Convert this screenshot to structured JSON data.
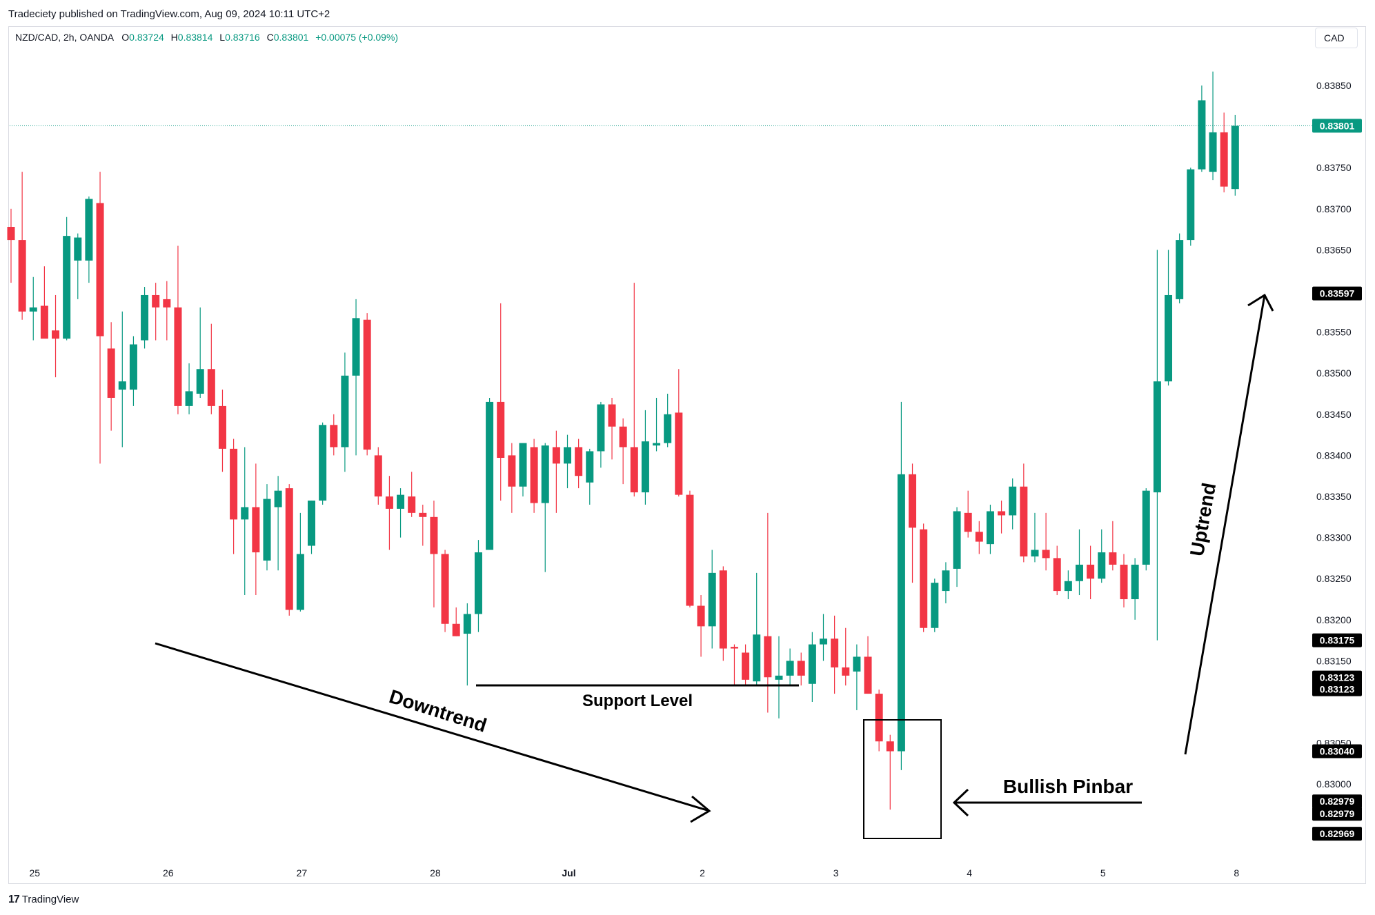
{
  "header": {
    "published": "Tradeciety published on TradingView.com, Aug 09, 2024 10:11 UTC+2",
    "symbol": "NZD/CAD, 2h, OANDA",
    "o_label": "O",
    "o_value": "0.83724",
    "h_label": "H",
    "h_value": "0.83814",
    "l_label": "L",
    "l_value": "0.83716",
    "c_label": "C",
    "c_value": "0.83801",
    "change": "+0.00075 (+0.09%)",
    "currency": "CAD"
  },
  "footer": {
    "brand": "TradingView",
    "brand_mark": "17"
  },
  "colors": {
    "up": "#089981",
    "down": "#f23645",
    "text": "#131722",
    "grid": "#d9dbe2"
  },
  "chart_data": {
    "type": "candlestick",
    "symbol": "NZD/CAD",
    "timeframe": "2h",
    "ylim": [
      0.829,
      0.8392
    ],
    "x_ticks": [
      {
        "label": "25",
        "index": 2
      },
      {
        "label": "26",
        "index": 14
      },
      {
        "label": "27",
        "index": 26
      },
      {
        "label": "28",
        "index": 38
      },
      {
        "label": "Jul",
        "index": 50
      },
      {
        "label": "2",
        "index": 62
      },
      {
        "label": "3",
        "index": 74
      },
      {
        "label": "4",
        "index": 86
      },
      {
        "label": "5",
        "index": 98
      },
      {
        "label": "8",
        "index": 110
      }
    ],
    "y_ticks": [
      "0.83850",
      "0.83750",
      "0.83700",
      "0.83650",
      "0.83550",
      "0.83500",
      "0.83450",
      "0.83400",
      "0.83350",
      "0.83300",
      "0.83250",
      "0.83200",
      "0.83150",
      "0.83050",
      "0.83000"
    ],
    "price_labels": [
      {
        "value": 0.83801,
        "text": "0.83801",
        "style": "last"
      },
      {
        "value": 0.83597,
        "text": "0.83597",
        "style": "marker"
      },
      {
        "value": 0.83175,
        "text": "0.83175",
        "style": "marker"
      },
      {
        "value": 0.83123,
        "text": "0.83123",
        "style": "marker",
        "offset": -8
      },
      {
        "value": 0.83123,
        "text": "0.83123",
        "style": "marker",
        "offset": 9
      },
      {
        "value": 0.8304,
        "text": "0.83040",
        "style": "marker"
      },
      {
        "value": 0.82979,
        "text": "0.82979",
        "style": "marker"
      },
      {
        "value": 0.82979,
        "text": "0.82979",
        "style": "marker",
        "offset": 18
      },
      {
        "value": 0.82969,
        "text": "0.82969",
        "style": "marker",
        "offset": 35
      }
    ],
    "last_price": 0.83801,
    "candles": [
      {
        "o": 0.83678,
        "h": 0.837,
        "l": 0.8361,
        "c": 0.83662
      },
      {
        "o": 0.83662,
        "h": 0.83745,
        "l": 0.83565,
        "c": 0.83575
      },
      {
        "o": 0.83575,
        "h": 0.83617,
        "l": 0.8354,
        "c": 0.8358
      },
      {
        "o": 0.83582,
        "h": 0.8363,
        "l": 0.83545,
        "c": 0.83542
      },
      {
        "o": 0.83552,
        "h": 0.83595,
        "l": 0.83495,
        "c": 0.83542
      },
      {
        "o": 0.83542,
        "h": 0.8369,
        "l": 0.8354,
        "c": 0.83667
      },
      {
        "o": 0.83637,
        "h": 0.8367,
        "l": 0.8359,
        "c": 0.83665
      },
      {
        "o": 0.83637,
        "h": 0.83715,
        "l": 0.8361,
        "c": 0.83712
      },
      {
        "o": 0.83707,
        "h": 0.83745,
        "l": 0.8339,
        "c": 0.83545
      },
      {
        "o": 0.8353,
        "h": 0.83562,
        "l": 0.8343,
        "c": 0.8347
      },
      {
        "o": 0.8348,
        "h": 0.83575,
        "l": 0.8341,
        "c": 0.8349
      },
      {
        "o": 0.8348,
        "h": 0.83545,
        "l": 0.8346,
        "c": 0.83535
      },
      {
        "o": 0.8354,
        "h": 0.83605,
        "l": 0.8353,
        "c": 0.83595
      },
      {
        "o": 0.83595,
        "h": 0.8361,
        "l": 0.8354,
        "c": 0.8358
      },
      {
        "o": 0.8359,
        "h": 0.83612,
        "l": 0.8354,
        "c": 0.8358
      },
      {
        "o": 0.8358,
        "h": 0.83655,
        "l": 0.8345,
        "c": 0.8346
      },
      {
        "o": 0.8346,
        "h": 0.83512,
        "l": 0.8345,
        "c": 0.83478
      },
      {
        "o": 0.83475,
        "h": 0.8358,
        "l": 0.8347,
        "c": 0.83505
      },
      {
        "o": 0.83505,
        "h": 0.8356,
        "l": 0.8345,
        "c": 0.8346
      },
      {
        "o": 0.8346,
        "h": 0.8348,
        "l": 0.8338,
        "c": 0.83408
      },
      {
        "o": 0.83408,
        "h": 0.8342,
        "l": 0.8328,
        "c": 0.83322
      },
      {
        "o": 0.83322,
        "h": 0.8341,
        "l": 0.8323,
        "c": 0.83337
      },
      {
        "o": 0.83337,
        "h": 0.8339,
        "l": 0.8323,
        "c": 0.83282
      },
      {
        "o": 0.83272,
        "h": 0.83365,
        "l": 0.8326,
        "c": 0.83347
      },
      {
        "o": 0.83337,
        "h": 0.83375,
        "l": 0.8326,
        "c": 0.83357
      },
      {
        "o": 0.8336,
        "h": 0.83365,
        "l": 0.83205,
        "c": 0.83212
      },
      {
        "o": 0.83212,
        "h": 0.8333,
        "l": 0.8321,
        "c": 0.8328
      },
      {
        "o": 0.8329,
        "h": 0.83345,
        "l": 0.8328,
        "c": 0.83345
      },
      {
        "o": 0.83345,
        "h": 0.8344,
        "l": 0.8334,
        "c": 0.83437
      },
      {
        "o": 0.83437,
        "h": 0.8345,
        "l": 0.834,
        "c": 0.8341
      },
      {
        "o": 0.8341,
        "h": 0.83525,
        "l": 0.8338,
        "c": 0.83497
      },
      {
        "o": 0.83497,
        "h": 0.8359,
        "l": 0.834,
        "c": 0.83567
      },
      {
        "o": 0.83565,
        "h": 0.83573,
        "l": 0.834,
        "c": 0.83407
      },
      {
        "o": 0.834,
        "h": 0.8341,
        "l": 0.8334,
        "c": 0.8335
      },
      {
        "o": 0.8335,
        "h": 0.83375,
        "l": 0.83285,
        "c": 0.83335
      },
      {
        "o": 0.83335,
        "h": 0.8336,
        "l": 0.833,
        "c": 0.83352
      },
      {
        "o": 0.8335,
        "h": 0.8338,
        "l": 0.83325,
        "c": 0.8333
      },
      {
        "o": 0.8333,
        "h": 0.8334,
        "l": 0.8329,
        "c": 0.83325
      },
      {
        "o": 0.83325,
        "h": 0.83345,
        "l": 0.83215,
        "c": 0.8328
      },
      {
        "o": 0.8328,
        "h": 0.83285,
        "l": 0.83185,
        "c": 0.83195
      },
      {
        "o": 0.83195,
        "h": 0.83215,
        "l": 0.8318,
        "c": 0.8318
      },
      {
        "o": 0.83183,
        "h": 0.8322,
        "l": 0.8312,
        "c": 0.83207
      },
      {
        "o": 0.83207,
        "h": 0.83297,
        "l": 0.83185,
        "c": 0.83282
      },
      {
        "o": 0.83285,
        "h": 0.8347,
        "l": 0.83285,
        "c": 0.83465
      },
      {
        "o": 0.83465,
        "h": 0.83585,
        "l": 0.83345,
        "c": 0.83397
      },
      {
        "o": 0.834,
        "h": 0.83415,
        "l": 0.8333,
        "c": 0.83362
      },
      {
        "o": 0.83362,
        "h": 0.83415,
        "l": 0.8335,
        "c": 0.83415
      },
      {
        "o": 0.8341,
        "h": 0.8342,
        "l": 0.8333,
        "c": 0.83342
      },
      {
        "o": 0.83342,
        "h": 0.83415,
        "l": 0.83258,
        "c": 0.83412
      },
      {
        "o": 0.8341,
        "h": 0.8343,
        "l": 0.8333,
        "c": 0.8339
      },
      {
        "o": 0.8339,
        "h": 0.83425,
        "l": 0.8336,
        "c": 0.8341
      },
      {
        "o": 0.8341,
        "h": 0.8342,
        "l": 0.8336,
        "c": 0.83375
      },
      {
        "o": 0.83367,
        "h": 0.83408,
        "l": 0.8334,
        "c": 0.83405
      },
      {
        "o": 0.83405,
        "h": 0.83465,
        "l": 0.83385,
        "c": 0.83462
      },
      {
        "o": 0.83462,
        "h": 0.8347,
        "l": 0.83395,
        "c": 0.83435
      },
      {
        "o": 0.83435,
        "h": 0.83445,
        "l": 0.83365,
        "c": 0.8341
      },
      {
        "o": 0.8341,
        "h": 0.8361,
        "l": 0.8335,
        "c": 0.83355
      },
      {
        "o": 0.83355,
        "h": 0.83455,
        "l": 0.8334,
        "c": 0.83417
      },
      {
        "o": 0.83412,
        "h": 0.8347,
        "l": 0.83405,
        "c": 0.83415
      },
      {
        "o": 0.83415,
        "h": 0.83475,
        "l": 0.8341,
        "c": 0.8345
      },
      {
        "o": 0.83452,
        "h": 0.83505,
        "l": 0.8335,
        "c": 0.83352
      },
      {
        "o": 0.83352,
        "h": 0.83357,
        "l": 0.83215,
        "c": 0.83217
      },
      {
        "o": 0.83217,
        "h": 0.8323,
        "l": 0.83155,
        "c": 0.83192
      },
      {
        "o": 0.83192,
        "h": 0.83285,
        "l": 0.83165,
        "c": 0.83257
      },
      {
        "o": 0.8326,
        "h": 0.83265,
        "l": 0.8315,
        "c": 0.83165
      },
      {
        "o": 0.83167,
        "h": 0.8317,
        "l": 0.8312,
        "c": 0.83165
      },
      {
        "o": 0.8316,
        "h": 0.8317,
        "l": 0.8312,
        "c": 0.83127
      },
      {
        "o": 0.83125,
        "h": 0.83257,
        "l": 0.8312,
        "c": 0.83182
      },
      {
        "o": 0.8318,
        "h": 0.8333,
        "l": 0.83087,
        "c": 0.8313
      },
      {
        "o": 0.83127,
        "h": 0.8318,
        "l": 0.8308,
        "c": 0.83132
      },
      {
        "o": 0.83132,
        "h": 0.83165,
        "l": 0.8312,
        "c": 0.8315
      },
      {
        "o": 0.8315,
        "h": 0.8316,
        "l": 0.8312,
        "c": 0.83132
      },
      {
        "o": 0.83122,
        "h": 0.83185,
        "l": 0.831,
        "c": 0.8317
      },
      {
        "o": 0.8317,
        "h": 0.83207,
        "l": 0.8315,
        "c": 0.83177
      },
      {
        "o": 0.83177,
        "h": 0.83205,
        "l": 0.8311,
        "c": 0.83142
      },
      {
        "o": 0.83142,
        "h": 0.8319,
        "l": 0.8312,
        "c": 0.83132
      },
      {
        "o": 0.83137,
        "h": 0.8317,
        "l": 0.8309,
        "c": 0.83155
      },
      {
        "o": 0.83155,
        "h": 0.8318,
        "l": 0.8311,
        "c": 0.8311
      },
      {
        "o": 0.8311,
        "h": 0.83115,
        "l": 0.8304,
        "c": 0.83052
      },
      {
        "o": 0.83052,
        "h": 0.8306,
        "l": 0.82969,
        "c": 0.8304
      },
      {
        "o": 0.8304,
        "h": 0.83465,
        "l": 0.83017,
        "c": 0.83377
      },
      {
        "o": 0.83377,
        "h": 0.8339,
        "l": 0.83245,
        "c": 0.83312
      },
      {
        "o": 0.8331,
        "h": 0.83317,
        "l": 0.83185,
        "c": 0.8319
      },
      {
        "o": 0.8319,
        "h": 0.8325,
        "l": 0.83185,
        "c": 0.83245
      },
      {
        "o": 0.83235,
        "h": 0.8327,
        "l": 0.8322,
        "c": 0.8326
      },
      {
        "o": 0.83262,
        "h": 0.83337,
        "l": 0.8324,
        "c": 0.83332
      },
      {
        "o": 0.8333,
        "h": 0.83357,
        "l": 0.833,
        "c": 0.83307
      },
      {
        "o": 0.83307,
        "h": 0.8332,
        "l": 0.8328,
        "c": 0.83295
      },
      {
        "o": 0.83292,
        "h": 0.8334,
        "l": 0.8328,
        "c": 0.83332
      },
      {
        "o": 0.83332,
        "h": 0.83345,
        "l": 0.83305,
        "c": 0.83327
      },
      {
        "o": 0.83327,
        "h": 0.83372,
        "l": 0.8331,
        "c": 0.83362
      },
      {
        "o": 0.83362,
        "h": 0.8339,
        "l": 0.8327,
        "c": 0.83277
      },
      {
        "o": 0.83277,
        "h": 0.8333,
        "l": 0.8327,
        "c": 0.83285
      },
      {
        "o": 0.83285,
        "h": 0.8333,
        "l": 0.8326,
        "c": 0.83275
      },
      {
        "o": 0.83275,
        "h": 0.8329,
        "l": 0.8323,
        "c": 0.83235
      },
      {
        "o": 0.83235,
        "h": 0.8326,
        "l": 0.83225,
        "c": 0.83247
      },
      {
        "o": 0.83247,
        "h": 0.8331,
        "l": 0.8323,
        "c": 0.83267
      },
      {
        "o": 0.83267,
        "h": 0.8329,
        "l": 0.83225,
        "c": 0.8325
      },
      {
        "o": 0.8325,
        "h": 0.8331,
        "l": 0.83245,
        "c": 0.83282
      },
      {
        "o": 0.83282,
        "h": 0.8332,
        "l": 0.8326,
        "c": 0.83267
      },
      {
        "o": 0.83267,
        "h": 0.8328,
        "l": 0.83215,
        "c": 0.83225
      },
      {
        "o": 0.83225,
        "h": 0.83275,
        "l": 0.832,
        "c": 0.83267
      },
      {
        "o": 0.83267,
        "h": 0.8336,
        "l": 0.8326,
        "c": 0.83357
      },
      {
        "o": 0.83355,
        "h": 0.8365,
        "l": 0.83175,
        "c": 0.8349
      },
      {
        "o": 0.8349,
        "h": 0.8365,
        "l": 0.83485,
        "c": 0.83595
      },
      {
        "o": 0.8359,
        "h": 0.8367,
        "l": 0.83585,
        "c": 0.83662
      },
      {
        "o": 0.83662,
        "h": 0.8375,
        "l": 0.83655,
        "c": 0.83748
      },
      {
        "o": 0.83748,
        "h": 0.8385,
        "l": 0.83745,
        "c": 0.83832
      },
      {
        "o": 0.83745,
        "h": 0.83867,
        "l": 0.83735,
        "c": 0.83793
      },
      {
        "o": 0.83793,
        "h": 0.83817,
        "l": 0.8372,
        "c": 0.83727
      },
      {
        "o": 0.83724,
        "h": 0.83814,
        "l": 0.83716,
        "c": 0.83801
      }
    ],
    "annotations": [
      {
        "kind": "text",
        "text": "Downtrend"
      },
      {
        "kind": "text",
        "text": "Support Level"
      },
      {
        "kind": "text",
        "text": "Bullish Pinbar"
      },
      {
        "kind": "text",
        "text": "Uptrend"
      }
    ]
  }
}
